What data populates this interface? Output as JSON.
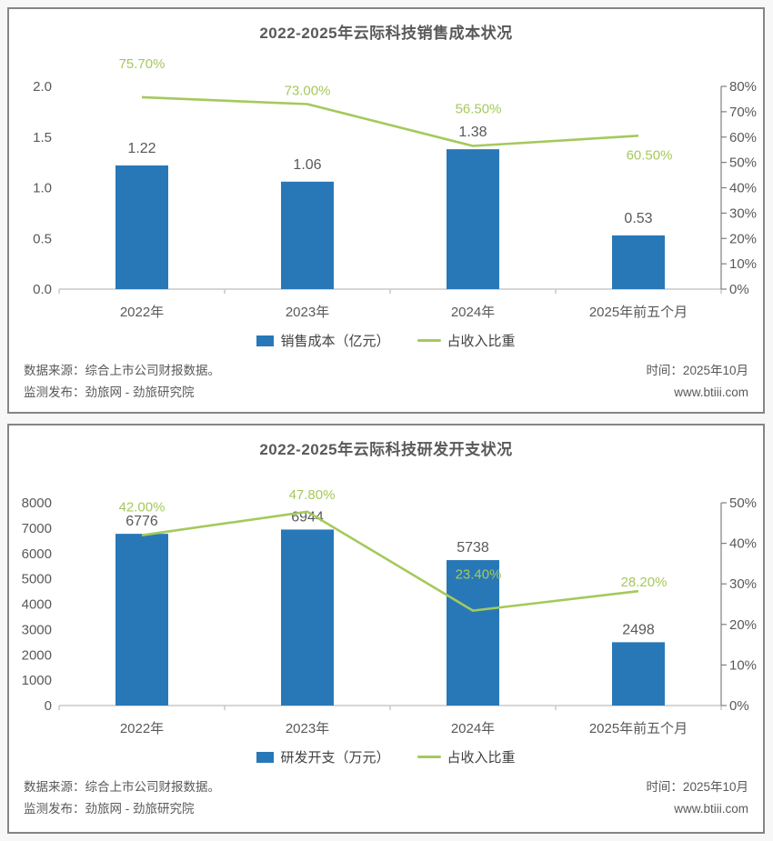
{
  "colors": {
    "bar": "#2878b8",
    "line": "#a5c95c",
    "text": "#595959",
    "axis_line": "#c9c9c9",
    "right_axis_line": "#7f7f7f"
  },
  "chart_data": [
    {
      "type": "bar+line",
      "title": "2022-2025年云际科技销售成本状况",
      "categories": [
        "2022年",
        "2023年",
        "2024年",
        "2025年前五个月"
      ],
      "series": [
        {
          "name": "销售成本（亿元）",
          "type": "bar",
          "axis": "left",
          "values": [
            1.22,
            1.06,
            1.38,
            0.53
          ],
          "labels": [
            "1.22",
            "1.06",
            "1.38",
            "0.53"
          ]
        },
        {
          "name": "占收入比重",
          "type": "line",
          "axis": "right",
          "values": [
            75.7,
            73.0,
            56.5,
            60.5
          ],
          "labels": [
            "75.70%",
            "73.00%",
            "56.50%",
            "60.50%"
          ]
        }
      ],
      "left_axis": {
        "min": 0,
        "max": 2.0,
        "ticks": [
          "0.0",
          "0.5",
          "1.0",
          "1.5",
          "2.0"
        ]
      },
      "right_axis": {
        "min": 0,
        "max": 80,
        "ticks": [
          "0%",
          "10%",
          "20%",
          "30%",
          "40%",
          "50%",
          "60%",
          "70%",
          "80%"
        ]
      },
      "legend_position": "bottom",
      "grid": false
    },
    {
      "type": "bar+line",
      "title": "2022-2025年云际科技研发开支状况",
      "categories": [
        "2022年",
        "2023年",
        "2024年",
        "2025年前五个月"
      ],
      "series": [
        {
          "name": "研发开支（万元）",
          "type": "bar",
          "axis": "left",
          "values": [
            6776,
            6944,
            5738,
            2498
          ],
          "labels": [
            "6776",
            "6944",
            "5738",
            "2498"
          ]
        },
        {
          "name": "占收入比重",
          "type": "line",
          "axis": "right",
          "values": [
            42.0,
            47.8,
            23.4,
            28.2
          ],
          "labels": [
            "42.00%",
            "47.80%",
            "23.40%",
            "28.20%"
          ]
        }
      ],
      "left_axis": {
        "min": 0,
        "max": 8000,
        "ticks": [
          "0",
          "1000",
          "2000",
          "3000",
          "4000",
          "5000",
          "6000",
          "7000",
          "8000"
        ]
      },
      "right_axis": {
        "min": 0,
        "max": 50,
        "ticks": [
          "0%",
          "10%",
          "20%",
          "30%",
          "40%",
          "50%"
        ]
      },
      "legend_position": "bottom",
      "grid": false
    }
  ],
  "footers": [
    {
      "source": "数据来源：综合上市公司财报数据。",
      "publisher": "监测发布：劲旅网 - 劲旅研究院",
      "time": "时间：2025年10月",
      "site": "www.btiii.com"
    },
    {
      "source": "数据来源：综合上市公司财报数据。",
      "publisher": "监测发布：劲旅网 - 劲旅研究院",
      "time": "时间：2025年10月",
      "site": "www.btiii.com"
    }
  ]
}
